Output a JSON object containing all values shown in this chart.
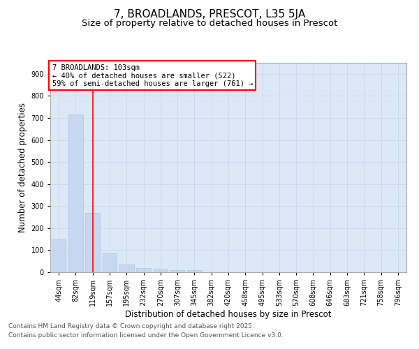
{
  "title": "7, BROADLANDS, PRESCOT, L35 5JA",
  "subtitle": "Size of property relative to detached houses in Prescot",
  "xlabel": "Distribution of detached houses by size in Prescot",
  "ylabel": "Number of detached properties",
  "categories": [
    "44sqm",
    "82sqm",
    "119sqm",
    "157sqm",
    "195sqm",
    "232sqm",
    "270sqm",
    "307sqm",
    "345sqm",
    "382sqm",
    "420sqm",
    "458sqm",
    "495sqm",
    "533sqm",
    "570sqm",
    "608sqm",
    "646sqm",
    "683sqm",
    "721sqm",
    "758sqm",
    "796sqm"
  ],
  "values": [
    150,
    715,
    270,
    85,
    35,
    20,
    12,
    10,
    8,
    0,
    0,
    0,
    0,
    0,
    0,
    0,
    0,
    0,
    0,
    0,
    0
  ],
  "bar_color": "#c5d8f0",
  "bar_edgecolor": "#a8c4e0",
  "grid_color": "#c8d8e8",
  "bg_color": "#dce8f5",
  "vline_x_index": 2,
  "vline_color": "red",
  "annotation_text": "7 BROADLANDS: 103sqm\n← 40% of detached houses are smaller (522)\n59% of semi-detached houses are larger (761) →",
  "annotation_box_color": "red",
  "ylim": [
    0,
    950
  ],
  "yticks": [
    0,
    100,
    200,
    300,
    400,
    500,
    600,
    700,
    800,
    900
  ],
  "footnote1": "Contains HM Land Registry data © Crown copyright and database right 2025.",
  "footnote2": "Contains public sector information licensed under the Open Government Licence v3.0.",
  "title_fontsize": 11,
  "subtitle_fontsize": 9.5,
  "tick_fontsize": 7,
  "ylabel_fontsize": 8.5,
  "xlabel_fontsize": 8.5,
  "annotation_fontsize": 7.5,
  "footnote_fontsize": 6.5
}
